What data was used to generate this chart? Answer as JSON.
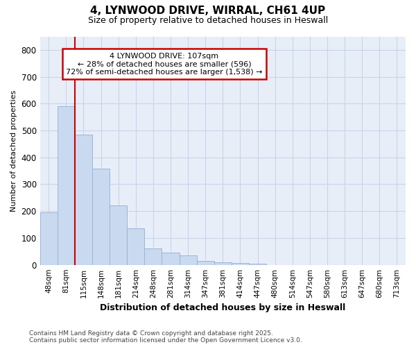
{
  "title_line1": "4, LYNWOOD DRIVE, WIRRAL, CH61 4UP",
  "title_line2": "Size of property relative to detached houses in Heswall",
  "xlabel": "Distribution of detached houses by size in Heswall",
  "ylabel": "Number of detached properties",
  "categories": [
    "48sqm",
    "81sqm",
    "115sqm",
    "148sqm",
    "181sqm",
    "214sqm",
    "248sqm",
    "281sqm",
    "314sqm",
    "347sqm",
    "381sqm",
    "414sqm",
    "447sqm",
    "480sqm",
    "514sqm",
    "547sqm",
    "580sqm",
    "613sqm",
    "647sqm",
    "680sqm",
    "713sqm"
  ],
  "values": [
    195,
    590,
    485,
    358,
    220,
    135,
    62,
    45,
    35,
    15,
    10,
    8,
    5,
    0,
    0,
    0,
    0,
    0,
    0,
    0,
    0
  ],
  "bar_color": "#c9d9ef",
  "bar_edge_color": "#9ab5d9",
  "vline_color": "#cc0000",
  "annotation_line1": "4 LYNWOOD DRIVE: 107sqm",
  "annotation_line2": "← 28% of detached houses are smaller (596)",
  "annotation_line3": "72% of semi-detached houses are larger (1,538) →",
  "annotation_box_edgecolor": "#cc0000",
  "annotation_bg": "#ffffff",
  "ylim": [
    0,
    850
  ],
  "yticks": [
    0,
    100,
    200,
    300,
    400,
    500,
    600,
    700,
    800
  ],
  "grid_color": "#c8d4e8",
  "bg_color": "#e8eef8",
  "footer_line1": "Contains HM Land Registry data © Crown copyright and database right 2025.",
  "footer_line2": "Contains public sector information licensed under the Open Government Licence v3.0."
}
